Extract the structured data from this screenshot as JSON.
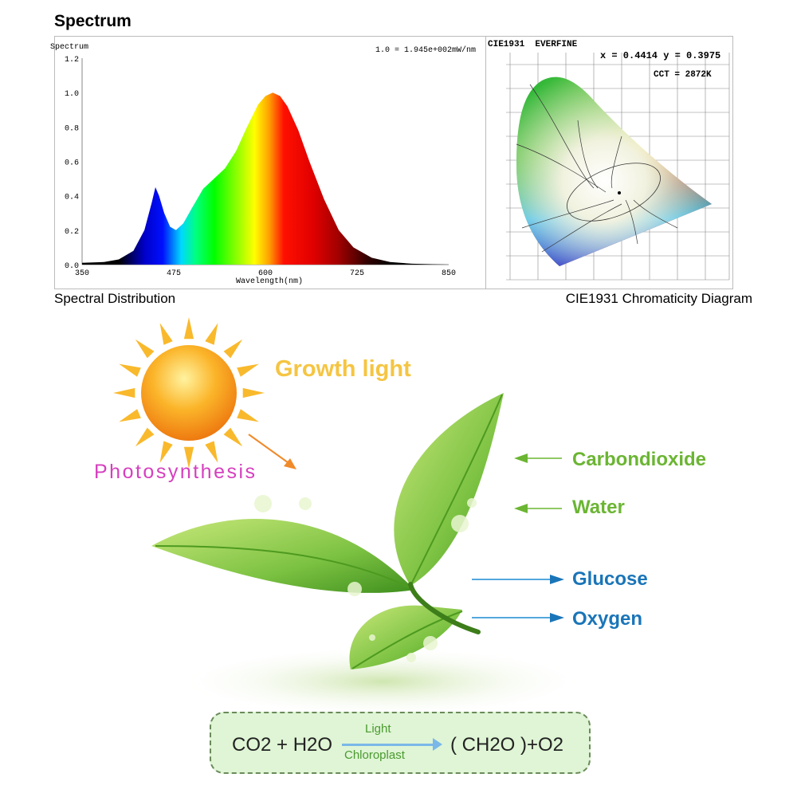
{
  "header": {
    "title": "Spectrum"
  },
  "chart_data": {
    "type": "area",
    "title": "Spectrum",
    "annotation": "1.0 = 1.945e+002mW/nm",
    "xlabel": "Wavelength(nm)",
    "ylabel": "",
    "xlim": [
      350,
      850
    ],
    "ylim": [
      0,
      1.2
    ],
    "xticks": [
      350,
      475,
      600,
      725,
      850
    ],
    "yticks": [
      "0.0",
      "0.2",
      "0.4",
      "0.6",
      "0.8",
      "1.0",
      "1.2"
    ],
    "grid": false,
    "fill": "visible-spectrum gradient",
    "x": [
      350,
      380,
      400,
      420,
      435,
      445,
      450,
      455,
      462,
      470,
      478,
      488,
      500,
      515,
      530,
      545,
      560,
      575,
      590,
      600,
      610,
      620,
      630,
      645,
      660,
      680,
      700,
      720,
      745,
      770,
      800,
      850
    ],
    "y": [
      0.01,
      0.015,
      0.03,
      0.08,
      0.2,
      0.36,
      0.45,
      0.4,
      0.3,
      0.22,
      0.2,
      0.24,
      0.33,
      0.44,
      0.5,
      0.56,
      0.66,
      0.8,
      0.93,
      0.98,
      1.0,
      0.98,
      0.92,
      0.78,
      0.6,
      0.38,
      0.2,
      0.1,
      0.04,
      0.015,
      0.005,
      0.0
    ]
  },
  "cie": {
    "title": "CIE1931  EVERFINE",
    "coords": "x = 0.4414 y = 0.3975",
    "cct": "CCT = 2872K"
  },
  "captions": {
    "left": "Spectral Distribution",
    "right": "CIE1931 Chromaticity Diagram"
  },
  "illustration": {
    "growth_light": "Growth light",
    "photosynthesis": "Photosynthesis",
    "inputs": [
      "Carbondioxide",
      "Water"
    ],
    "outputs": [
      "Glucose",
      "Oxygen"
    ],
    "equation": {
      "left": "CO2 + H2O",
      "above_arrow": "Light",
      "below_arrow": "Chloroplast",
      "right": "( CH2O )+O2"
    }
  },
  "colors": {
    "input_green": "#6bb533",
    "output_blue": "#1a75b8",
    "photosynthesis": "#d63fbf",
    "growth_light": "#f5c542",
    "sun": "#f7a21b",
    "leaf": "#7cc242"
  }
}
